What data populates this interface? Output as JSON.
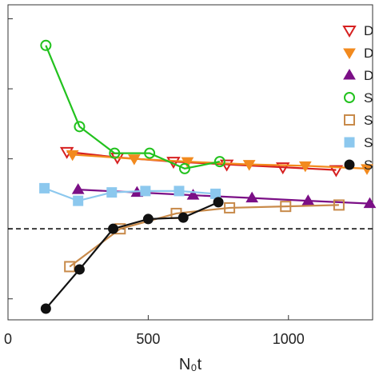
{
  "chart_data": {
    "type": "line",
    "title": "",
    "xlabel": "N₀t",
    "ylabel": "",
    "xlim": [
      0,
      1300
    ],
    "ylim": [
      -0.065,
      0.16
    ],
    "x_ticks": [
      0,
      500,
      1000
    ],
    "y_ticks": [
      -0.05,
      0,
      0.05,
      0.1,
      0.15
    ],
    "reference_line": {
      "y": 0,
      "style": "dashed"
    },
    "grid": false,
    "legend_position": "right",
    "series": [
      {
        "name": "D",
        "color": "#d62020",
        "marker": "triangle-down-open",
        "x": [
          210,
          390,
          590,
          780,
          980,
          1170
        ],
        "y": [
          0.055,
          0.051,
          0.048,
          0.046,
          0.044,
          0.042
        ]
      },
      {
        "name": "D",
        "color": "#f28a1e",
        "marker": "triangle-down-filled",
        "x": [
          230,
          450,
          640,
          860,
          1060,
          1280
        ],
        "y": [
          0.053,
          0.05,
          0.048,
          0.046,
          0.045,
          0.043
        ]
      },
      {
        "name": "D",
        "color": "#7b0f86",
        "marker": "triangle-up-filled",
        "x": [
          250,
          460,
          660,
          870,
          1070,
          1290
        ],
        "y": [
          0.028,
          0.026,
          0.024,
          0.022,
          0.02,
          0.018
        ]
      },
      {
        "name": "S",
        "color": "#22c21e",
        "marker": "circle-open",
        "x": [
          135,
          255,
          380,
          505,
          630,
          755
        ],
        "y": [
          0.131,
          0.073,
          0.054,
          0.054,
          0.043,
          0.048
        ]
      },
      {
        "name": "S",
        "color": "#c88a4a",
        "marker": "square-open",
        "x": [
          220,
          400,
          600,
          790,
          990,
          1180
        ],
        "y": [
          -0.027,
          0.0,
          0.011,
          0.015,
          0.016,
          0.017
        ]
      },
      {
        "name": "S",
        "color": "#8cc8ee",
        "marker": "square-filled",
        "x": [
          130,
          250,
          370,
          490,
          610,
          740
        ],
        "y": [
          0.029,
          0.02,
          0.026,
          0.027,
          0.027,
          0.025
        ]
      },
      {
        "name": "S",
        "color": "#111111",
        "marker": "circle-filled",
        "x": [
          135,
          255,
          375,
          500,
          625,
          750
        ],
        "y": [
          -0.057,
          -0.029,
          0.0,
          0.007,
          0.008,
          0.019
        ]
      }
    ]
  }
}
